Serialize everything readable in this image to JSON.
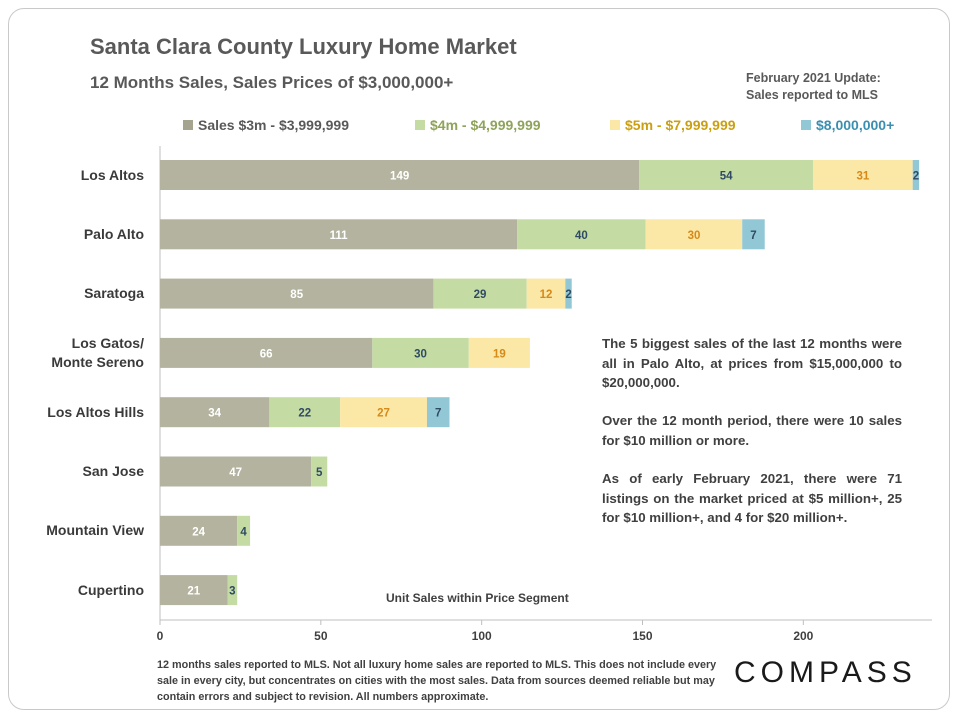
{
  "header": {
    "title": "Santa Clara County Luxury Home Market",
    "subtitle": "12 Months  Sales, Sales Prices of $3,000,000+",
    "update_line1": "February 2021  Update:",
    "update_line2": "Sales reported to MLS"
  },
  "notes": [
    "The 5 biggest sales of the last 12 months were all in Palo Alto, at prices from $15,000,000 to $20,000,000.",
    "Over the 12 month period, there were 10 sales for $10 million or more.",
    "As of early February 2021, there were 71 listings on the market priced at $5 million+, 25 for $10 million+, and 4 for $20 million+."
  ],
  "footer": "12 months sales reported to MLS. Not all luxury home sales are reported to MLS. This does not include every sale in every city, but concentrates on cities with the most sales. Data from sources deemed reliable but may contain errors and subject to revision. All numbers approximate.",
  "logo": "COMPASS",
  "chart_data": {
    "type": "bar",
    "orientation": "horizontal",
    "stacked": true,
    "categories": [
      "Los Altos",
      "Palo Alto",
      "Saratoga",
      "Los Gatos/\nMonte Sereno",
      "Los Altos Hills",
      "San Jose",
      "Mountain View",
      "Cupertino"
    ],
    "series": [
      {
        "name": "Sales $3m - $3,999,999",
        "color": "#b4b39f",
        "label_color": "#ffffff",
        "values": [
          149,
          111,
          85,
          66,
          34,
          47,
          24,
          21
        ]
      },
      {
        "name": "$4m - $4,999,999",
        "color": "#c5dba4",
        "label_color": "#2f4a63",
        "legend_color": "#8fa35a",
        "values": [
          54,
          40,
          29,
          30,
          22,
          5,
          4,
          3
        ]
      },
      {
        "name": "$5m - $7,999,999",
        "color": "#fbe7a6",
        "label_color": "#d58a1a",
        "legend_color": "#caa012",
        "values": [
          31,
          30,
          12,
          19,
          27,
          0,
          0,
          0
        ]
      },
      {
        "name": "$8,000,000+",
        "color": "#92c7d6",
        "label_color": "#2f4a63",
        "legend_color": "#3a8fb0",
        "values": [
          2,
          7,
          2,
          0,
          7,
          0,
          0,
          0
        ]
      }
    ],
    "xlim": [
      0,
      240
    ],
    "xticks": [
      0,
      50,
      100,
      150,
      200
    ],
    "xlabel": "Unit Sales within Price Segment",
    "legend_position": "top"
  }
}
